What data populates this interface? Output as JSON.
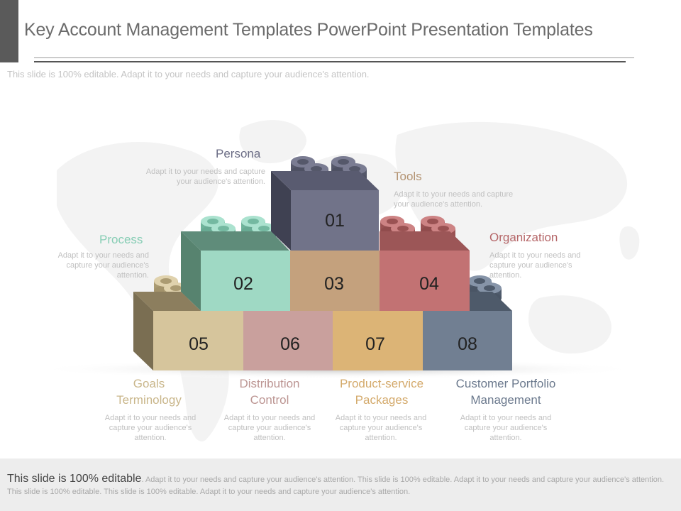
{
  "header": {
    "title": "Key Account Management Templates PowerPoint Presentation Templates",
    "subtitle": "This slide is 100% editable. Adapt it to your needs and capture your audience's attention."
  },
  "diagram": {
    "blocks": [
      {
        "number": "01",
        "color": "#717389"
      },
      {
        "number": "02",
        "color": "#9fd9c4"
      },
      {
        "number": "03",
        "color": "#c4a17d"
      },
      {
        "number": "04",
        "color": "#c27273"
      },
      {
        "number": "05",
        "color": "#d6c59c"
      },
      {
        "number": "06",
        "color": "#c9a09d"
      },
      {
        "number": "07",
        "color": "#dcb476"
      },
      {
        "number": "08",
        "color": "#717f92"
      }
    ],
    "labels": [
      {
        "title": "Persona",
        "desc": "Adapt it to your needs and capture your audience's attention.",
        "color": "#6c6e86"
      },
      {
        "title": "Process",
        "desc": "Adapt it to your needs and capture your audience's attention.",
        "color": "#86cdb4"
      },
      {
        "title": "Tools",
        "desc": "Adapt it to your needs and capture your audience's attention.",
        "color": "#b39372"
      },
      {
        "title": "Organization",
        "desc": "Adapt it to your needs and capture your audience's attention.",
        "color": "#b56668"
      },
      {
        "title": "Goals Terminology",
        "desc": "Adapt it to your needs and capture your audience's attention.",
        "color": "#c9b68a"
      },
      {
        "title": "Distribution Control",
        "desc": "Adapt it to your needs and capture your audience's attention.",
        "color": "#bc9592"
      },
      {
        "title": "Product-service Packages",
        "desc": "Adapt it to your needs and capture your audience's attention.",
        "color": "#d4aa6c"
      },
      {
        "title": "Customer Portfolio Management",
        "desc": "Adapt it to your needs and capture your audience's attention.",
        "color": "#6c7a8e"
      }
    ]
  },
  "footer": {
    "lead": "This slide is 100% editable",
    "text": ". Adapt it to your needs and capture your audience's attention. This slide is 100% editable. Adapt it to your needs and capture your audience's attention. This slide is 100% editable. This slide is 100% editable. Adapt it to your needs and capture your audience's attention."
  }
}
